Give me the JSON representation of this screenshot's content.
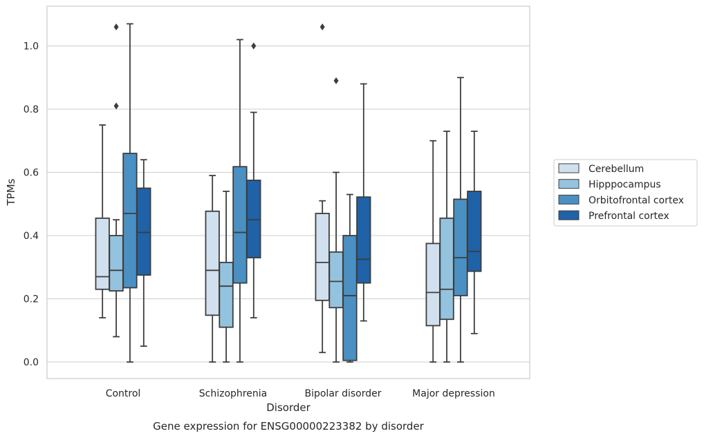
{
  "chart_data": {
    "type": "box",
    "xlabel": "Disorder",
    "ylabel": "TPMs",
    "caption": "Gene expression for ENSG00000223382 by disorder",
    "ylim": [
      -0.05,
      1.13
    ],
    "yticks": [
      "0.0",
      "0.2",
      "0.4",
      "0.6",
      "0.8",
      "1.0"
    ],
    "grid": true,
    "legend_position": "right",
    "categories": [
      "Control",
      "Schizophrenia",
      "Bipolar disorder",
      "Major depression"
    ],
    "series": [
      {
        "name": "Cerebellum",
        "color": "#d0e0ef",
        "boxes": [
          {
            "whisker_low": 0.14,
            "q1": 0.23,
            "median": 0.27,
            "q3": 0.455,
            "whisker_high": 0.75,
            "outliers": []
          },
          {
            "whisker_low": 0.0,
            "q1": 0.148,
            "median": 0.29,
            "q3": 0.477,
            "whisker_high": 0.59,
            "outliers": []
          },
          {
            "whisker_low": 0.03,
            "q1": 0.195,
            "median": 0.315,
            "q3": 0.47,
            "whisker_high": 0.51,
            "outliers": [
              1.06
            ]
          },
          {
            "whisker_low": 0.0,
            "q1": 0.115,
            "median": 0.22,
            "q3": 0.375,
            "whisker_high": 0.7,
            "outliers": []
          }
        ]
      },
      {
        "name": "Hipppocampus",
        "color": "#94c3df",
        "boxes": [
          {
            "whisker_low": 0.08,
            "q1": 0.225,
            "median": 0.29,
            "q3": 0.4,
            "whisker_high": 0.45,
            "outliers": [
              1.06,
              0.81
            ]
          },
          {
            "whisker_low": 0.0,
            "q1": 0.11,
            "median": 0.24,
            "q3": 0.315,
            "whisker_high": 0.54,
            "outliers": []
          },
          {
            "whisker_low": 0.0,
            "q1": 0.172,
            "median": 0.255,
            "q3": 0.348,
            "whisker_high": 0.6,
            "outliers": [
              0.89
            ]
          },
          {
            "whisker_low": 0.0,
            "q1": 0.135,
            "median": 0.23,
            "q3": 0.455,
            "whisker_high": 0.73,
            "outliers": []
          }
        ]
      },
      {
        "name": "Orbitofrontal cortex",
        "color": "#4a90c2",
        "boxes": [
          {
            "whisker_low": 0.0,
            "q1": 0.235,
            "median": 0.47,
            "q3": 0.66,
            "whisker_high": 1.07,
            "outliers": []
          },
          {
            "whisker_low": 0.0,
            "q1": 0.25,
            "median": 0.41,
            "q3": 0.618,
            "whisker_high": 1.02,
            "outliers": []
          },
          {
            "whisker_low": 0.0,
            "q1": 0.005,
            "median": 0.21,
            "q3": 0.4,
            "whisker_high": 0.53,
            "outliers": []
          },
          {
            "whisker_low": 0.0,
            "q1": 0.21,
            "median": 0.33,
            "q3": 0.515,
            "whisker_high": 0.9,
            "outliers": []
          }
        ]
      },
      {
        "name": "Prefrontal cortex",
        "color": "#1f62a7",
        "boxes": [
          {
            "whisker_low": 0.05,
            "q1": 0.275,
            "median": 0.41,
            "q3": 0.55,
            "whisker_high": 0.64,
            "outliers": []
          },
          {
            "whisker_low": 0.14,
            "q1": 0.33,
            "median": 0.45,
            "q3": 0.575,
            "whisker_high": 0.79,
            "outliers": [
              1.0
            ]
          },
          {
            "whisker_low": 0.13,
            "q1": 0.25,
            "median": 0.325,
            "q3": 0.522,
            "whisker_high": 0.88,
            "outliers": []
          },
          {
            "whisker_low": 0.09,
            "q1": 0.287,
            "median": 0.35,
            "q3": 0.54,
            "whisker_high": 0.73,
            "outliers": []
          }
        ]
      }
    ]
  }
}
